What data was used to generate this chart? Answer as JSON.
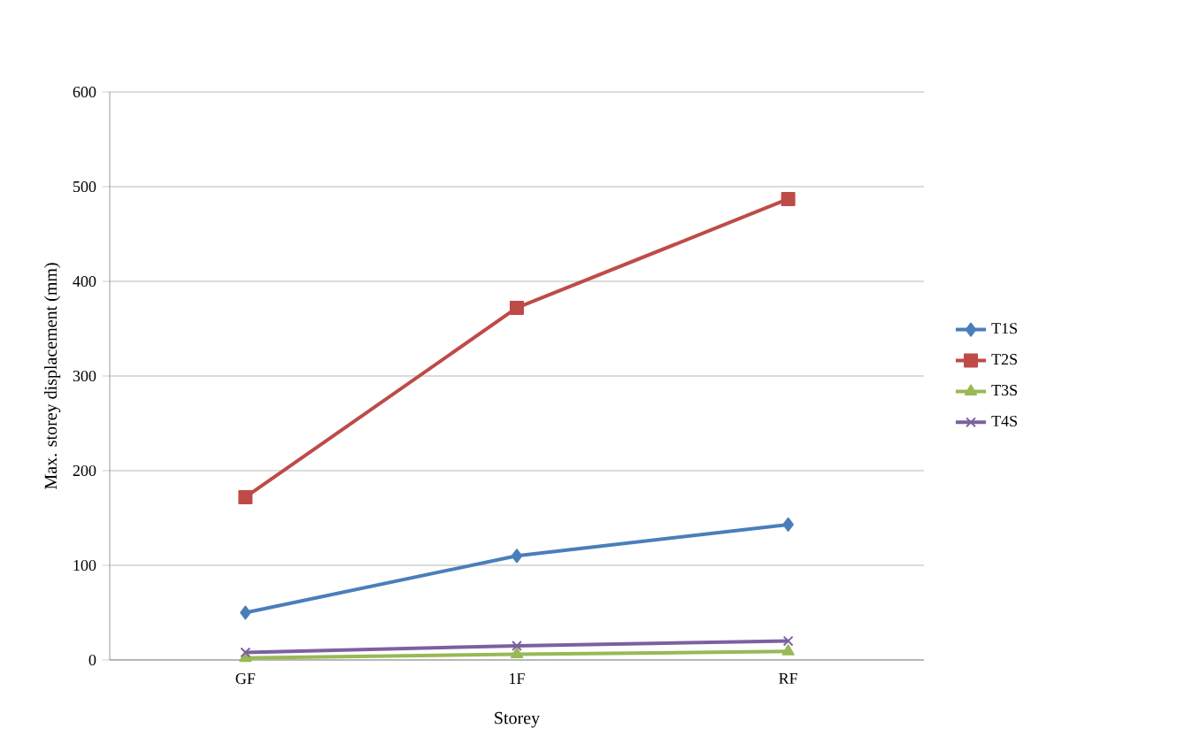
{
  "chart_data": {
    "type": "line",
    "xlabel": "Storey",
    "ylabel": "Max. storey displacement (mm)",
    "categories": [
      "GF",
      "1F",
      "RF"
    ],
    "series": [
      {
        "name": "T1S",
        "color": "#4a7ebb",
        "marker": "diamond",
        "values": [
          50,
          110,
          143
        ]
      },
      {
        "name": "T2S",
        "color": "#be4b48",
        "marker": "square",
        "values": [
          172,
          372,
          487
        ]
      },
      {
        "name": "T3S",
        "color": "#98b954",
        "marker": "triangle",
        "values": [
          2,
          6,
          9
        ]
      },
      {
        "name": "T4S",
        "color": "#7d60a0",
        "marker": "cross",
        "values": [
          8,
          15,
          20
        ]
      }
    ],
    "ylim": [
      0,
      600
    ],
    "yticks": [
      0,
      100,
      200,
      300,
      400,
      500,
      600
    ],
    "grid": "y",
    "legend": "right",
    "line_style": "solid"
  }
}
